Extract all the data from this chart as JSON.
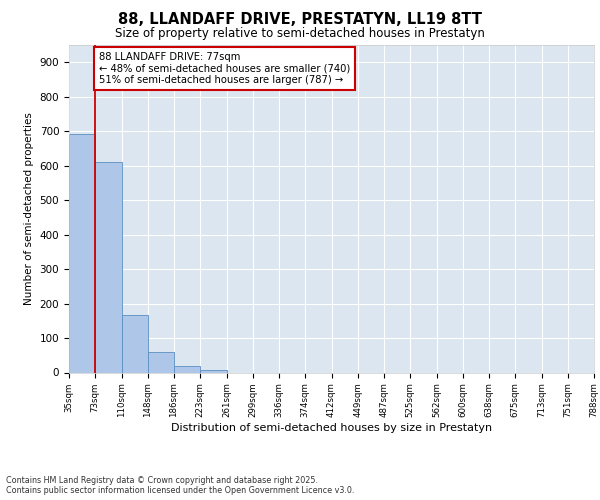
{
  "title1": "88, LLANDAFF DRIVE, PRESTATYN, LL19 8TT",
  "title2": "Size of property relative to semi-detached houses in Prestatyn",
  "xlabel": "Distribution of semi-detached houses by size in Prestatyn",
  "ylabel": "Number of semi-detached properties",
  "bar_values": [
    693,
    611,
    168,
    60,
    18,
    7,
    0,
    0,
    0,
    0,
    0,
    0,
    0,
    0,
    0,
    0,
    0,
    0,
    0,
    0
  ],
  "categories": [
    "35sqm",
    "73sqm",
    "110sqm",
    "148sqm",
    "186sqm",
    "223sqm",
    "261sqm",
    "299sqm",
    "336sqm",
    "374sqm",
    "412sqm",
    "449sqm",
    "487sqm",
    "525sqm",
    "562sqm",
    "600sqm",
    "638sqm",
    "675sqm",
    "713sqm",
    "751sqm",
    "788sqm"
  ],
  "bar_color": "#aec6e8",
  "bar_edge_color": "#5a8fc2",
  "vline_x": 1,
  "vline_color": "#cc0000",
  "annotation_title": "88 LLANDAFF DRIVE: 77sqm",
  "annotation_line1": "← 48% of semi-detached houses are smaller (740)",
  "annotation_line2": "51% of semi-detached houses are larger (787) →",
  "annotation_box_color": "#cc0000",
  "ylim": [
    0,
    950
  ],
  "yticks": [
    0,
    100,
    200,
    300,
    400,
    500,
    600,
    700,
    800,
    900
  ],
  "background_color": "#dce6f0",
  "footer": "Contains HM Land Registry data © Crown copyright and database right 2025.\nContains public sector information licensed under the Open Government Licence v3.0."
}
